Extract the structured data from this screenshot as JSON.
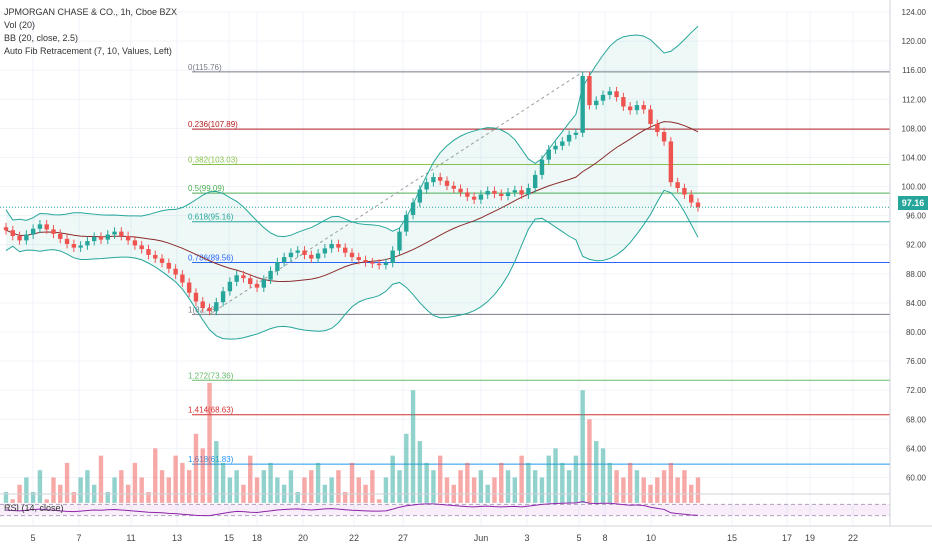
{
  "legend": {
    "symbol": "JPMORGAN CHASE & CO., 1h, Cboe BZX",
    "volume": "Vol (20)",
    "bollinger": "BB (20, close, 2.5)",
    "fib": "Auto Fib Retracement (7, 10, Values, Left)"
  },
  "rsi_label": "RSI (14, close)",
  "last_price": "97.16",
  "colors": {
    "up": "#26a69a",
    "down": "#ef5350",
    "bb_basis": "#8b2c2c",
    "bb_band": "#26a69a",
    "rsi": "#8e24aa"
  },
  "chart_data": {
    "type": "candlestick",
    "price_axis_ticks": [
      "124.00",
      "120.00",
      "116.00",
      "112.00",
      "108.00",
      "104.00",
      "100.00",
      "96.00",
      "92.00",
      "88.00",
      "84.00",
      "80.00",
      "76.00",
      "72.00",
      "68.00",
      "64.00",
      "60.00"
    ],
    "price_axis_values": [
      124,
      120,
      116,
      112,
      108,
      104,
      100,
      96,
      92,
      88,
      84,
      80,
      76,
      72,
      68,
      64,
      60
    ],
    "date_ticks": [
      {
        "label": "5",
        "x_index": 0
      },
      {
        "label": "7",
        "x_index": 1
      },
      {
        "label": "11",
        "x_index": 2
      },
      {
        "label": "13",
        "x_index": 3
      },
      {
        "label": "15",
        "x_index": 4
      },
      {
        "label": "18",
        "x_index": 5
      },
      {
        "label": "20",
        "x_index": 6
      },
      {
        "label": "22",
        "x_index": 7
      },
      {
        "label": "27",
        "x_index": 8
      },
      {
        "label": "Jun",
        "x_index": 9
      },
      {
        "label": "3",
        "x_index": 10
      },
      {
        "label": "5",
        "x_index": 11
      },
      {
        "label": "8",
        "x_index": 12
      },
      {
        "label": "10",
        "x_index": 13
      },
      {
        "label": "15",
        "x_index": 14
      },
      {
        "label": "17",
        "x_index": 15
      },
      {
        "label": "19",
        "x_index": 16
      },
      {
        "label": "22",
        "x_index": 17
      }
    ],
    "fib_levels": [
      {
        "label": "0(115.76)",
        "value": 115.76,
        "color": "#787b86"
      },
      {
        "label": "0.236(107.89)",
        "value": 107.89,
        "color": "#b71c1c"
      },
      {
        "label": "0.382(103.03)",
        "value": 103.03,
        "color": "#8bc34a"
      },
      {
        "label": "0.5(99.09)",
        "value": 99.09,
        "color": "#4caf50"
      },
      {
        "label": "0.618(95.16)",
        "value": 95.16,
        "color": "#26a69a"
      },
      {
        "label": "0.786(89.56)",
        "value": 89.56,
        "color": "#2962ff"
      },
      {
        "label": "1(82.43)",
        "value": 82.43,
        "color": "#787b86"
      },
      {
        "label": "1.272(73.36)",
        "value": 73.36,
        "color": "#66bb6a"
      },
      {
        "label": "1.414(68.63)",
        "value": 68.63,
        "color": "#d32f2f"
      },
      {
        "label": "1.618(61.83)",
        "value": 61.83,
        "color": "#2196f3"
      }
    ],
    "closes": [
      94,
      93.2,
      92.6,
      93.4,
      94.2,
      94.8,
      94.1,
      93.5,
      92.8,
      92.1,
      91.6,
      91.9,
      92.5,
      93.1,
      92.7,
      93.4,
      93.8,
      93.2,
      92.6,
      91.9,
      91.4,
      90.6,
      90.1,
      89.5,
      88.7,
      87.9,
      86.8,
      85.4,
      84.2,
      83.3,
      82.9,
      84.1,
      85.6,
      86.9,
      87.8,
      87.4,
      86.6,
      86.1,
      87.2,
      88.4,
      89.6,
      90.3,
      90.9,
      91.2,
      90.6,
      90.1,
      90.8,
      91.5,
      92.1,
      91.6,
      90.9,
      90.3,
      89.9,
      89.6,
      89.4,
      89.2,
      89.5,
      91.2,
      93.8,
      96.1,
      97.8,
      99.6,
      100.6,
      101.3,
      100.8,
      100.1,
      99.7,
      99.2,
      98.6,
      98.2,
      98.9,
      99.4,
      99.0,
      98.7,
      99.2,
      99.5,
      98.9,
      99.8,
      101.6,
      103.7,
      105.1,
      105.6,
      106.2,
      107.1,
      107.4,
      115.2,
      111.2,
      111.8,
      112.6,
      113.1,
      112.3,
      111.0,
      110.5,
      111.2,
      110.6,
      108.6,
      107.5,
      106.2,
      100.6,
      99.8,
      98.9,
      97.8,
      97.16
    ],
    "volumes": [
      58,
      57,
      59,
      60,
      58,
      61,
      57,
      60,
      59,
      62,
      58,
      60,
      61,
      59,
      63,
      58,
      60,
      61,
      59,
      62,
      60,
      58,
      64,
      61,
      60,
      63,
      62,
      61,
      66,
      64,
      73,
      65,
      62,
      60,
      61,
      59,
      63,
      60,
      61,
      62,
      60,
      59,
      61,
      58,
      60,
      61,
      62,
      59,
      60,
      61,
      58,
      62,
      60,
      59,
      61,
      57,
      60,
      63,
      61,
      66,
      72,
      65,
      62,
      61,
      63,
      60,
      59,
      61,
      62,
      60,
      61,
      59,
      60,
      62,
      61,
      60,
      63,
      62,
      61,
      60,
      63,
      64,
      62,
      61,
      63,
      72,
      68,
      65,
      64,
      62,
      61,
      60,
      62,
      61,
      60,
      59,
      60,
      61,
      62,
      60,
      61,
      59,
      60
    ],
    "rsi_values": [
      50,
      48,
      47,
      49,
      52,
      53,
      51,
      49,
      47,
      45,
      44,
      46,
      48,
      50,
      49,
      51,
      52,
      50,
      48,
      46,
      44,
      42,
      41,
      40,
      38,
      37,
      35,
      33,
      31,
      30,
      30,
      34,
      38,
      42,
      45,
      44,
      42,
      41,
      44,
      47,
      50,
      52,
      53,
      54,
      52,
      50,
      52,
      54,
      55,
      53,
      51,
      49,
      48,
      47,
      46,
      46,
      47,
      53,
      60,
      65,
      68,
      71,
      72,
      72,
      70,
      68,
      66,
      64,
      62,
      61,
      63,
      64,
      62,
      61,
      62,
      63,
      61,
      64,
      67,
      70,
      72,
      73,
      74,
      75,
      75,
      80,
      74,
      73,
      74,
      74,
      72,
      69,
      67,
      68,
      66,
      60,
      56,
      52,
      40,
      37,
      35,
      32,
      31
    ]
  }
}
